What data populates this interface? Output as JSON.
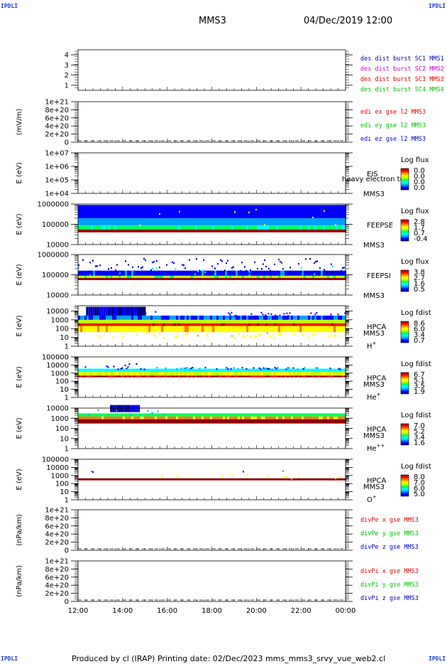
{
  "corner_marks": [
    "IPDLI",
    "IPDLI",
    "IPDLI",
    "IPDLI"
  ],
  "header": {
    "spacecraft": "MMS3",
    "datetime": "04/Dec/2019 12:00"
  },
  "footer": "Produced by cl (IRAP)   Printing date: 02/Dec/2023   mms_mms3_srvy_vue_web2.cl",
  "colors": {
    "red": "#e00000",
    "magenta": "#d000d0",
    "green": "#00c000",
    "blue": "#0000c0",
    "spectrogram_scale": [
      "#000080",
      "#0000ff",
      "#00a0ff",
      "#00ffff",
      "#00ff60",
      "#c0ff00",
      "#ffff00",
      "#ff8000",
      "#ff0000",
      "#900000"
    ]
  },
  "chart_data": {
    "type": "heatmap",
    "x_ticks": [
      "12:00",
      "14:00",
      "16:00",
      "18:00",
      "20:00",
      "22:00",
      "00:00"
    ],
    "xlim": [
      "12:00",
      "00:00"
    ],
    "panels": [
      {
        "id": "dist",
        "type": "line",
        "ylabel": "",
        "ylog": false,
        "ylim": [
          0.5,
          4.5
        ],
        "yticks": [
          "1",
          "2",
          "3",
          "4"
        ],
        "legend": [
          {
            "text": "des dist burst SC1 MMS1",
            "color": "blue"
          },
          {
            "text": "des dist burst SC2 MMS2",
            "color": "magenta"
          },
          {
            "text": "des dist burst SC3 MMS3",
            "color": "red"
          },
          {
            "text": "des dist burst SC4 MMS4",
            "color": "green"
          }
        ]
      },
      {
        "id": "edi",
        "type": "line",
        "ylabel": "(mV/m)",
        "ylog": false,
        "ylim": [
          0,
          1e+21
        ],
        "yticks": [
          "1e+21",
          "8e+20",
          "6e+20",
          "4e+20",
          "2e+20",
          "0"
        ],
        "zero_line": true,
        "legend": [
          {
            "text": "edi ex gse l2 MMS3",
            "color": "red"
          },
          {
            "text": "edi ey gse l2 MMS3",
            "color": "green"
          },
          {
            "text": "edi ez gse l2 MMS3",
            "color": "blue"
          }
        ]
      },
      {
        "id": "eis",
        "type": "heatmap",
        "ylabel": "E (eV)",
        "ylog": true,
        "ylim": [
          10000.0,
          10000000.0
        ],
        "yticks": [
          "1e+07",
          "1e+06",
          "1e+05",
          "1e+04"
        ],
        "inst": "EIS",
        "inst2": "MMS3",
        "overlay": "heavy electron to",
        "cbar_title": "Log flux",
        "cbar_labels": [
          "0.0",
          "0.0",
          "0.0",
          "0.0"
        ]
      },
      {
        "id": "feepse",
        "type": "heatmap",
        "ylabel": "E (eV)",
        "ylog": true,
        "ylim": [
          10000.0,
          1000000.0
        ],
        "yticks": [
          "1000000",
          "100000",
          "10000"
        ],
        "inst": "FEEPSE",
        "inst2": "MMS3",
        "cbar_title": "Log flux",
        "cbar_labels": [
          "2.8",
          "1.7",
          "0.7",
          "-0.4"
        ]
      },
      {
        "id": "feepsi",
        "type": "heatmap",
        "ylabel": "E (eV)",
        "ylog": true,
        "ylim": [
          10000.0,
          1000000.0
        ],
        "yticks": [
          "1000000",
          "100000",
          "10000"
        ],
        "inst": "FEEPSI",
        "inst2": "MMS3",
        "cbar_title": "Log flux",
        "cbar_labels": [
          "3.8",
          "2.7",
          "1.6",
          "0.5"
        ]
      },
      {
        "id": "hpca_h",
        "type": "heatmap",
        "ylabel": "E (eV)",
        "ylog": true,
        "ylim": [
          1,
          40000
        ],
        "yticks": [
          "10000",
          "1000",
          "100",
          "10",
          "1"
        ],
        "inst": "HPCA",
        "inst2": "MMS3",
        "species": "H",
        "sup": "+",
        "cbar_title": "Log fdist",
        "cbar_labels": [
          "8.6",
          "6.0",
          "3.4",
          "0.7"
        ]
      },
      {
        "id": "hpca_he",
        "type": "heatmap",
        "ylabel": "E (eV)",
        "ylog": true,
        "ylim": [
          1,
          100000
        ],
        "yticks": [
          "100000",
          "10000",
          "1000",
          "100",
          "10",
          "1"
        ],
        "inst": "HPCA",
        "inst2": "MMS3",
        "species": "He",
        "sup": "+",
        "cbar_title": "Log fdist",
        "cbar_labels": [
          "6.7",
          "5.1",
          "3.5",
          "1.9"
        ]
      },
      {
        "id": "hpca_hepp",
        "type": "heatmap",
        "ylabel": "E (eV)",
        "ylog": true,
        "ylim": [
          1,
          10000
        ],
        "yticks": [
          "10000",
          "1000",
          "100",
          "10",
          "1"
        ],
        "inst": "HPCA",
        "inst2": "MMS3",
        "species": "He",
        "sup": "++",
        "cbar_title": "Log fdist",
        "cbar_labels": [
          "7.0",
          "5.2",
          "3.4",
          "1.6"
        ]
      },
      {
        "id": "hpca_o",
        "type": "heatmap",
        "ylabel": "E (eV)",
        "ylog": true,
        "ylim": [
          1,
          100000
        ],
        "yticks": [
          "100000",
          "10000",
          "1000",
          "100",
          "10",
          "1"
        ],
        "inst": "HPCA",
        "inst2": "MMS3",
        "species": "O",
        "sup": "+",
        "cbar_title": "Log fdist",
        "cbar_labels": [
          "8.0",
          "7.0",
          "6.0",
          "5.0"
        ]
      },
      {
        "id": "divpe",
        "type": "line",
        "ylabel": "(nPa/km)",
        "ylog": false,
        "ylim": [
          0,
          1e+21
        ],
        "yticks": [
          "1e+21",
          "8e+20",
          "6e+20",
          "4e+20",
          "2e+20",
          "0"
        ],
        "zero_line": true,
        "legend": [
          {
            "text": "divPe x gse MMS3",
            "color": "red"
          },
          {
            "text": "divPe y gse MMS3",
            "color": "green"
          },
          {
            "text": "divPe z gse MMS3",
            "color": "blue"
          }
        ]
      },
      {
        "id": "divpi",
        "type": "line",
        "ylabel": "(nPa/km)",
        "ylog": false,
        "ylim": [
          0,
          1e+21
        ],
        "yticks": [
          "1e+21",
          "8e+20",
          "6e+20",
          "4e+20",
          "2e+20",
          "0"
        ],
        "zero_line": true,
        "legend": [
          {
            "text": "divPi x gse MMS3",
            "color": "red"
          },
          {
            "text": "divPi y gse MMS3",
            "color": "green"
          },
          {
            "text": "divPi z gse MMS3",
            "color": "blue"
          }
        ]
      }
    ]
  }
}
